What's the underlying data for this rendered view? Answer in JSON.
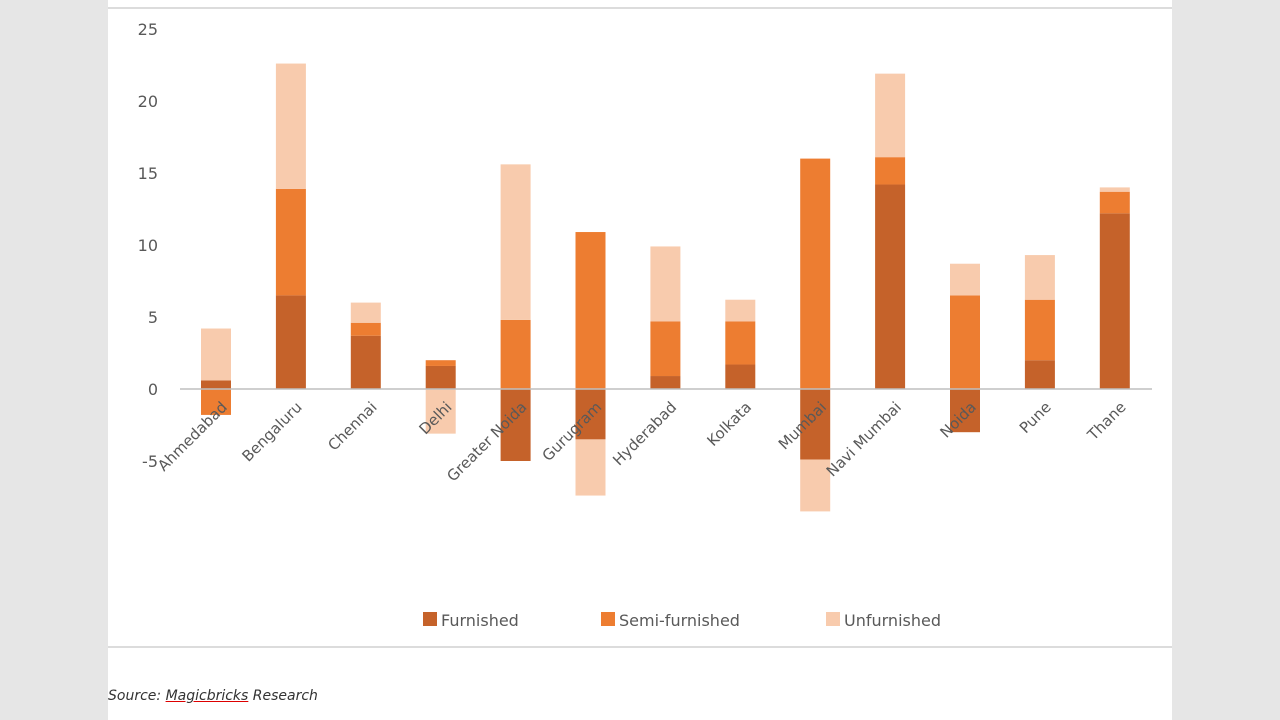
{
  "chart_data": {
    "type": "bar",
    "stacked": true,
    "categories": [
      "Ahmedabad",
      "Bengaluru",
      "Chennai",
      "Delhi",
      "Greater Noida",
      "Gurugram",
      "Hyderabad",
      "Kolkata",
      "Mumbai",
      "Navi Mumbai",
      "Noida",
      "Pune",
      "Thane"
    ],
    "series": [
      {
        "name": "Furnished",
        "color": "#c5622a",
        "values": [
          0.6,
          6.5,
          3.7,
          1.6,
          -5.0,
          -3.5,
          0.9,
          1.7,
          -4.9,
          14.2,
          -3.0,
          2.0,
          12.2
        ]
      },
      {
        "name": "Semi-furnished",
        "color": "#ed7d31",
        "values": [
          -1.8,
          7.4,
          0.9,
          0.4,
          4.8,
          10.9,
          3.8,
          3.0,
          16.0,
          1.9,
          6.5,
          4.2,
          1.5
        ]
      },
      {
        "name": "Unfurnished",
        "color": "#f8cbad",
        "values": [
          3.6,
          8.7,
          1.4,
          -3.1,
          10.8,
          -3.9,
          5.2,
          1.5,
          -3.6,
          5.8,
          2.2,
          3.1,
          0.3
        ]
      }
    ],
    "yticks": [
      -5,
      0,
      5,
      10,
      15,
      20,
      25
    ],
    "ylim": [
      -8.5,
      25
    ],
    "grid": false,
    "legend_position": "bottom"
  },
  "source": {
    "prefix": "Source: ",
    "brand": "Magicbricks",
    "suffix": " Research"
  }
}
